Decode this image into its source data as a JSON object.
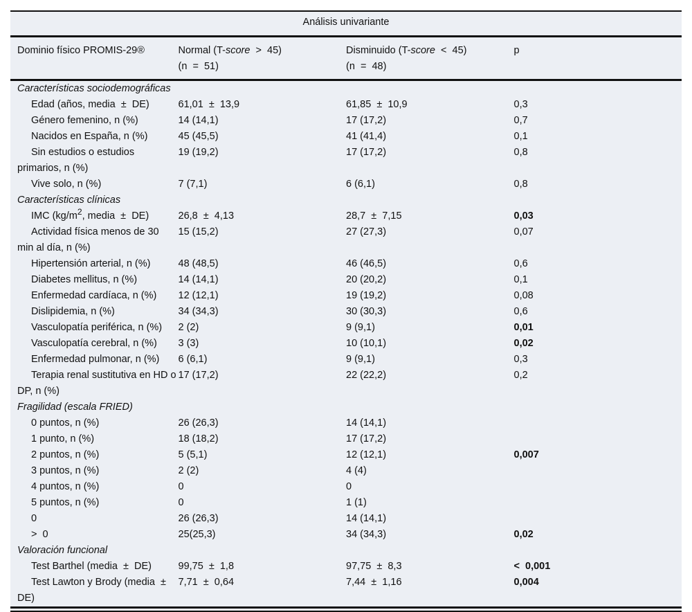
{
  "title": "Análisis univariante",
  "header": {
    "col1": "Dominio físico PROMIS-29®",
    "col2_pre": "Normal (T-",
    "col2_it": "score",
    "col2_post": "  >  45)",
    "col2_n": "(n  =  51)",
    "col3_pre": "Disminuido (T-",
    "col3_it": "score",
    "col3_post": "  <  45)",
    "col3_n": "(n  =  48)",
    "col4": "p"
  },
  "rows": [
    {
      "section": "Características sociodemográficas"
    },
    {
      "label": "Edad (años, media  ±  DE)",
      "normal": "61,01  ±  13,9",
      "dism": "61,85  ±  10,9",
      "p": "0,3"
    },
    {
      "label": "Género femenino, n (%)",
      "normal": "14 (14,1)",
      "dism": "17 (17,2)",
      "p": "0,7"
    },
    {
      "label": "Nacidos en España, n (%)",
      "normal": "45 (45,5)",
      "dism": "41 (41,4)",
      "p": "0,1"
    },
    {
      "label": "Sin estudios o estudios primarios, n (%)",
      "normal": "19 (19,2)",
      "dism": "17 (17,2)",
      "p": "0,8"
    },
    {
      "label": "Vive solo, n (%)",
      "normal": "7 (7,1)",
      "dism": "6 (6,1)",
      "p": "0,8"
    },
    {
      "section": "Características clínicas"
    },
    {
      "label": "IMC (kg/m",
      "sup": "2",
      "label_post": ", media  ±  DE)",
      "normal": "26,8  ±  4,13",
      "dism": "28,7  ±  7,15",
      "p": "0,03",
      "bold": true
    },
    {
      "label": "Actividad física menos de 30  min al día, n (%)",
      "normal": "15 (15,2)",
      "dism": "27 (27,3)",
      "p": "0,07"
    },
    {
      "label": "Hipertensión arterial, n (%)",
      "normal": "48 (48,5)",
      "dism": "46 (46,5)",
      "p": "0,6"
    },
    {
      "label": "Diabetes mellitus, n (%)",
      "normal": "14 (14,1)",
      "dism": "20 (20,2)",
      "p": "0,1"
    },
    {
      "label": "Enfermedad cardíaca, n (%)",
      "normal": "12 (12,1)",
      "dism": "19 (19,2)",
      "p": "0,08"
    },
    {
      "label": "Dislipidemia, n (%)",
      "normal": "34 (34,3)",
      "dism": "30 (30,3)",
      "p": "0,6"
    },
    {
      "label": "Vasculopatía periférica, n (%)",
      "normal": "2 (2)",
      "dism": "9 (9,1)",
      "p": "0,01",
      "bold": true
    },
    {
      "label": "Vasculopatía cerebral, n (%)",
      "normal": "3 (3)",
      "dism": "10 (10,1)",
      "p": "0,02",
      "bold": true
    },
    {
      "label": "Enfermedad pulmonar, n (%)",
      "normal": "6 (6,1)",
      "dism": "9 (9,1)",
      "p": "0,3"
    },
    {
      "label": "Terapia renal sustitutiva en HD o DP, n (%)",
      "normal": "17 (17,2)",
      "dism": "22 (22,2)",
      "p": "0,2"
    },
    {
      "section": "Fragilidad (escala FRIED)"
    },
    {
      "label": "0 puntos, n (%)",
      "normal": "26 (26,3)",
      "dism": "14 (14,1)",
      "p": ""
    },
    {
      "label": "1 punto, n (%)",
      "normal": "18 (18,2)",
      "dism": "17 (17,2)",
      "p": ""
    },
    {
      "label": "2 puntos, n (%)",
      "normal": "5 (5,1)",
      "dism": "12 (12,1)",
      "p": "0,007",
      "bold": true
    },
    {
      "label": "3 puntos, n (%)",
      "normal": "2 (2)",
      "dism": "4 (4)",
      "p": ""
    },
    {
      "label": "4 puntos, n (%)",
      "normal": "0",
      "dism": "0",
      "p": ""
    },
    {
      "label": "5 puntos, n (%)",
      "normal": "0",
      "dism": "1 (1)",
      "p": ""
    },
    {
      "label": "0",
      "normal": "26 (26,3)",
      "dism": "14 (14,1)",
      "p": ""
    },
    {
      "label": ">  0",
      "normal": "25(25,3)",
      "dism": "34 (34,3)",
      "p": "0,02",
      "bold": true
    },
    {
      "section": "Valoración funcional"
    },
    {
      "label": "Test Barthel (media  ±  DE)",
      "normal": "99,75  ±  1,8",
      "dism": "97,75  ±  8,3",
      "p": "<  0,001",
      "bold": true
    },
    {
      "label": "Test Lawton y Brody (media  ±  DE)",
      "normal": "7,71  ±  0,64",
      "dism": "7,44  ±  1,16",
      "p": "0,004",
      "bold": true
    }
  ]
}
